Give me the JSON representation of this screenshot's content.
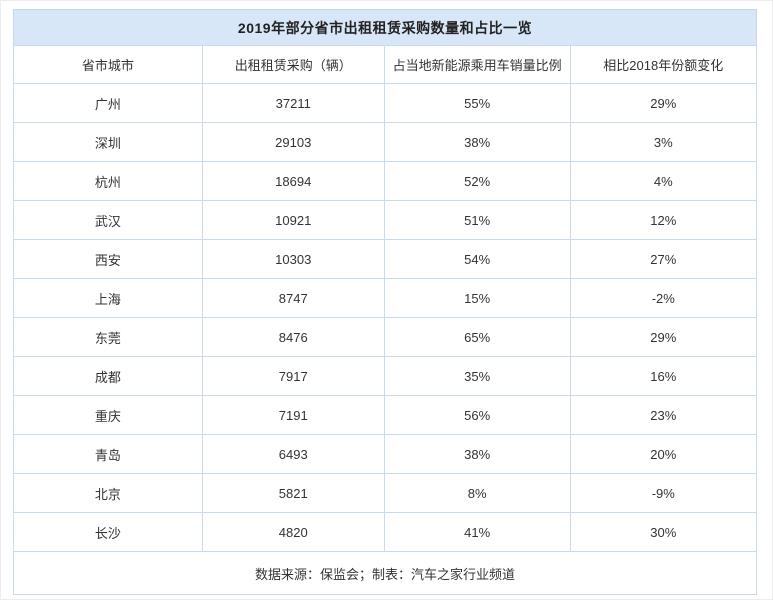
{
  "page": {
    "title": "2019年部分省市出租租赁采购数量和占比一览"
  },
  "table": {
    "headers": [
      "省市城市",
      "出租租赁采购（辆）",
      "占当地新能源乘用车销量比例",
      "相比2018年份额变化"
    ],
    "rows": [
      {
        "city": "广州",
        "purchases": "37211",
        "share": "55%",
        "change": "29%"
      },
      {
        "city": "深圳",
        "purchases": "29103",
        "share": "38%",
        "change": "3%"
      },
      {
        "city": "杭州",
        "purchases": "18694",
        "share": "52%",
        "change": "4%"
      },
      {
        "city": "武汉",
        "purchases": "10921",
        "share": "51%",
        "change": "12%"
      },
      {
        "city": "西安",
        "purchases": "10303",
        "share": "54%",
        "change": "27%"
      },
      {
        "city": "上海",
        "purchases": "8747",
        "share": "15%",
        "change": "-2%"
      },
      {
        "city": "东莞",
        "purchases": "8476",
        "share": "65%",
        "change": "29%"
      },
      {
        "city": "成都",
        "purchases": "7917",
        "share": "35%",
        "change": "16%"
      },
      {
        "city": "重庆",
        "purchases": "7191",
        "share": "56%",
        "change": "23%"
      },
      {
        "city": "青岛",
        "purchases": "6493",
        "share": "38%",
        "change": "20%"
      },
      {
        "city": "北京",
        "purchases": "5821",
        "share": "8%",
        "change": "-9%"
      },
      {
        "city": "长沙",
        "purchases": "4820",
        "share": "41%",
        "change": "30%"
      }
    ],
    "footer": "数据来源：保监会；制表：汽车之家行业频道"
  },
  "colors": {
    "title_bar_bg": "#d8e7f8",
    "title_bar_border": "#c3d7ef",
    "cell_border": "#c9daf0",
    "text": "#333333"
  },
  "chart_data": {
    "type": "table",
    "title": "2019年部分省市出租租赁采购数量和占比一览",
    "columns": [
      "省市城市",
      "出租租赁采购（辆）",
      "占当地新能源乘用车销量比例",
      "相比2018年份额变化"
    ],
    "categories": [
      "广州",
      "深圳",
      "杭州",
      "武汉",
      "西安",
      "上海",
      "东莞",
      "成都",
      "重庆",
      "青岛",
      "北京",
      "长沙"
    ],
    "series": [
      {
        "name": "出租租赁采购（辆）",
        "values": [
          37211,
          29103,
          18694,
          10921,
          10303,
          8747,
          8476,
          7917,
          7191,
          6493,
          5821,
          4820
        ]
      },
      {
        "name": "占当地新能源乘用车销量比例",
        "values": [
          "55%",
          "38%",
          "52%",
          "51%",
          "54%",
          "15%",
          "65%",
          "35%",
          "56%",
          "38%",
          "8%",
          "41%"
        ]
      },
      {
        "name": "相比2018年份额变化",
        "values": [
          "29%",
          "3%",
          "4%",
          "12%",
          "27%",
          "-2%",
          "29%",
          "16%",
          "23%",
          "20%",
          "-9%",
          "30%"
        ]
      }
    ],
    "source_note": "数据来源：保监会；制表：汽车之家行业频道"
  }
}
